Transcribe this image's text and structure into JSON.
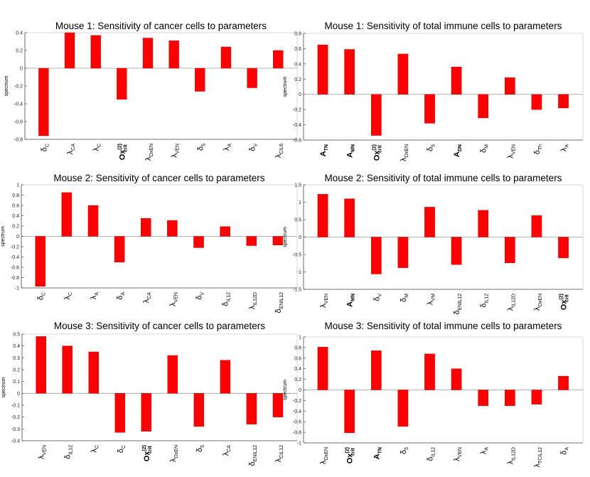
{
  "chart_data": [
    {
      "type": "bar",
      "title": "Mouse 1: Sensitivity of cancer cells to parameters",
      "ylabel": "spectrum",
      "ylim": [
        -0.8,
        0.4
      ],
      "yticks": [
        "-0.8",
        "-0.6",
        "-0.4",
        "-0.2",
        "0",
        "0.2",
        "0.4"
      ],
      "grid": false,
      "bar_color": "#ff0000",
      "categories": [
        {
          "label": "δ",
          "sub": "C"
        },
        {
          "label": "λ",
          "sub": "CA"
        },
        {
          "label": "λ",
          "sub": "C"
        },
        {
          "label": "Ox",
          "sup": "(2)",
          "sub": "crit",
          "bold": true
        },
        {
          "label": "λ",
          "sub": "O",
          "sub2": "x",
          "sub3": "E",
          "sub4": "N"
        },
        {
          "label": "λ",
          "sub": "VE",
          "sub2": "N"
        },
        {
          "label": "δ",
          "sub": "5"
        },
        {
          "label": "λ",
          "sub": "A"
        },
        {
          "label": "δ",
          "sub": "V"
        },
        {
          "label": "λ",
          "sub": "CIL",
          "sub2": "6"
        }
      ],
      "values": [
        -0.76,
        0.4,
        0.37,
        -0.35,
        0.34,
        0.31,
        -0.26,
        0.24,
        -0.22,
        0.2
      ]
    },
    {
      "type": "bar",
      "title": "Mouse 1: Sensitivity of total immune cells to parameters",
      "ylabel": "spectrum",
      "ylim": [
        -0.6,
        0.8
      ],
      "yticks": [
        "-0.6",
        "-0.4",
        "-0.2",
        "0",
        "0.2",
        "0.4",
        "0.6",
        "0.8"
      ],
      "grid": false,
      "bar_color": "#ff0000",
      "categories": [
        {
          "label": "A",
          "sub": "T",
          "sub2": "N",
          "bold": true
        },
        {
          "label": "A",
          "sub": "M",
          "sub2": "N",
          "bold": true
        },
        {
          "label": "Ox",
          "sup": "(2)",
          "sub": "crit",
          "bold": true
        },
        {
          "label": "λ",
          "sub": "O",
          "sub2": "x",
          "sub3": "E",
          "sub4": "N"
        },
        {
          "label": "δ",
          "sub": "5"
        },
        {
          "label": "A",
          "sub": "D",
          "sub2": "N",
          "bold": true
        },
        {
          "label": "δ",
          "sub": "M"
        },
        {
          "label": "λ",
          "sub": "VE",
          "sub2": "N"
        },
        {
          "label": "δ",
          "sub": "T",
          "sub2": "h"
        },
        {
          "label": "λ",
          "sub": "A"
        }
      ],
      "values": [
        0.65,
        0.59,
        -0.54,
        0.53,
        -0.38,
        0.36,
        -0.31,
        0.22,
        -0.2,
        -0.18
      ]
    },
    {
      "type": "bar",
      "title": "Mouse 2: Sensitivity of cancer cells to parameters",
      "ylabel": "spectrum",
      "ylim": [
        -1,
        1
      ],
      "yticks": [
        "-1",
        "-0.8",
        "-0.6",
        "-0.4",
        "-0.2",
        "0",
        "0.2",
        "0.4",
        "0.6",
        "0.8",
        "1"
      ],
      "grid": false,
      "bar_color": "#ff0000",
      "categories": [
        {
          "label": "δ",
          "sub": "C"
        },
        {
          "label": "λ",
          "sub": "C"
        },
        {
          "label": "λ",
          "sub": "A"
        },
        {
          "label": "δ",
          "sub": "A"
        },
        {
          "label": "λ",
          "sub": "CA"
        },
        {
          "label": "λ",
          "sub": "VE",
          "sub2": "N"
        },
        {
          "label": "δ",
          "sub": "V"
        },
        {
          "label": "δ",
          "sub": "IL",
          "sub2": "12"
        },
        {
          "label": "λ",
          "sub": "IL",
          "sub2": "12",
          "sub3": "D"
        },
        {
          "label": "δ",
          "sub": "E",
          "sub2": "N",
          "sub3": "IL",
          "sub4": "12"
        }
      ],
      "values": [
        -0.97,
        0.85,
        0.6,
        -0.5,
        0.35,
        0.31,
        -0.22,
        0.19,
        -0.18,
        -0.17
      ]
    },
    {
      "type": "bar",
      "title": "Mouse 2: Sensitivity of total immune cells to parameters",
      "ylabel": "spectrum",
      "ylim": [
        -1.5,
        1.5
      ],
      "yticks": [
        "-1.5",
        "-1",
        "-0.5",
        "0",
        "0.5",
        "1",
        "1.5"
      ],
      "grid": false,
      "bar_color": "#ff0000",
      "categories": [
        {
          "label": "λ",
          "sub": "VE",
          "sub2": "N"
        },
        {
          "label": "A",
          "sub": "M",
          "sub2": "N",
          "bold": true
        },
        {
          "label": "δ",
          "sub": "V"
        },
        {
          "label": "δ",
          "sub": "M"
        },
        {
          "label": "λ",
          "sub": "VM"
        },
        {
          "label": "δ",
          "sub": "E",
          "sub2": "N",
          "sub3": "IL",
          "sub4": "12"
        },
        {
          "label": "δ",
          "sub": "IL",
          "sub2": "12"
        },
        {
          "label": "λ",
          "sub": "IL",
          "sub2": "12",
          "sub3": "D"
        },
        {
          "label": "λ",
          "sub": "O",
          "sub2": "x",
          "sub3": "E",
          "sub4": "N"
        },
        {
          "label": "Ox",
          "sup": "(2)",
          "sub": "crit",
          "bold": true
        }
      ],
      "values": [
        1.23,
        1.1,
        -1.06,
        -0.88,
        0.86,
        -0.79,
        0.77,
        -0.74,
        0.62,
        -0.6
      ]
    },
    {
      "type": "bar",
      "title": "Mouse 3: Sensitivity of cancer cells to parameters",
      "ylabel": "spectrum",
      "ylim": [
        -0.4,
        0.5
      ],
      "yticks": [
        "-0.4",
        "-0.3",
        "-0.2",
        "-0.1",
        "0",
        "0.1",
        "0.2",
        "0.3",
        "0.4",
        "0.5"
      ],
      "grid": false,
      "bar_color": "#ff0000",
      "categories": [
        {
          "label": "λ",
          "sub": "VE",
          "sub2": "N"
        },
        {
          "label": "δ",
          "sub": "IL",
          "sub2": "12"
        },
        {
          "label": "λ",
          "sub": "C"
        },
        {
          "label": "δ",
          "sub": "C"
        },
        {
          "label": "Ox",
          "sup": "(2)",
          "sub": "crit",
          "bold": true
        },
        {
          "label": "λ",
          "sub": "O",
          "sub2": "x",
          "sub3": "E",
          "sub4": "N"
        },
        {
          "label": "δ",
          "sub": "5"
        },
        {
          "label": "λ",
          "sub": "CA"
        },
        {
          "label": "δ",
          "sub": "E",
          "sub2": "N",
          "sub3": "IL",
          "sub4": "12"
        },
        {
          "label": "λ",
          "sub": "C",
          "sub2": "IL",
          "sub3": "12"
        }
      ],
      "values": [
        0.48,
        0.4,
        0.35,
        -0.33,
        -0.32,
        0.32,
        -0.28,
        0.28,
        -0.26,
        -0.2
      ]
    },
    {
      "type": "bar",
      "title": "Mouse 3: Sensitivity of total immune cells to parameters",
      "ylabel": "spectrum",
      "ylim": [
        -1,
        1
      ],
      "yticks": [
        "-1",
        "-0.8",
        "-0.6",
        "-0.4",
        "-0.2",
        "0",
        "0.2",
        "0.4",
        "0.6",
        "0.8",
        "1"
      ],
      "grid": false,
      "bar_color": "#ff0000",
      "categories": [
        {
          "label": "λ",
          "sub": "O",
          "sub2": "x",
          "sub3": "E",
          "sub4": "N"
        },
        {
          "label": "Ox",
          "sup": "(2)",
          "sub": "crit",
          "bold": true
        },
        {
          "label": "A",
          "sub": "T",
          "sub2": "N",
          "bold": true
        },
        {
          "label": "δ",
          "sub": "5"
        },
        {
          "label": "δ",
          "sub": "IL",
          "sub2": "12"
        },
        {
          "label": "λ",
          "sub": "VE",
          "sub2": "N"
        },
        {
          "label": "λ",
          "sub": "A"
        },
        {
          "label": "λ",
          "sub": "IL",
          "sub2": "12",
          "sub3": "D"
        },
        {
          "label": "λ",
          "sub": "T",
          "sub2": "C",
          "sub3": "IL",
          "sub4": "12"
        },
        {
          "label": "δ",
          "sub": "A"
        }
      ],
      "values": [
        0.81,
        -0.81,
        0.74,
        -0.69,
        0.68,
        0.4,
        -0.3,
        -0.3,
        -0.27,
        0.26
      ]
    }
  ]
}
